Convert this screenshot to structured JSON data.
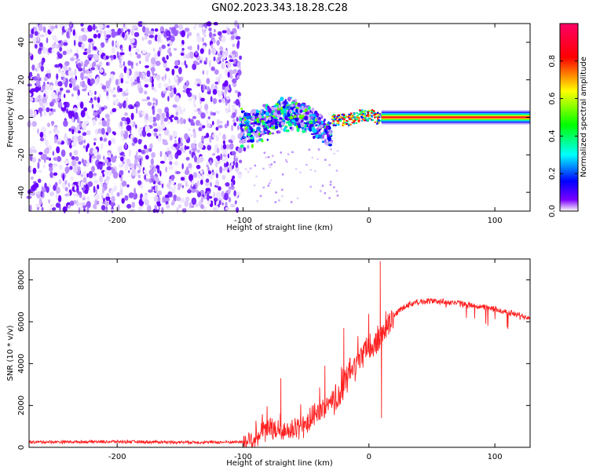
{
  "title": "GN02.2023.343.18.28.C28",
  "chart_data": [
    {
      "type": "heatmap",
      "title": "GN02.2023.343.18.28.C28",
      "xlabel": "Height of straight line (km)",
      "ylabel": "Frequency (Hz)",
      "xlim": [
        -270,
        128
      ],
      "ylim": [
        -50,
        50
      ],
      "xticks": [
        -200,
        -100,
        0,
        100
      ],
      "yticks": [
        -40,
        -20,
        0,
        20,
        40
      ],
      "colorbar": {
        "label": "Normalized spectral amplitude",
        "range": [
          0,
          1
        ],
        "ticks": [
          "0.0",
          "0.2",
          "0.4",
          "0.6",
          "0.8"
        ],
        "colors": [
          "#ffffff",
          "#7b00ff",
          "#0000ff",
          "#00ffff",
          "#00ff00",
          "#ffff00",
          "#ff0000",
          "#ff0066"
        ]
      },
      "regions": [
        {
          "x_range": [
            -270,
            -102
          ],
          "freq_spread_hz": 50,
          "amplitude": "low (noise, ~0.0-0.3)"
        },
        {
          "x_range": [
            -102,
            -30
          ],
          "freq_spread_hz": 12,
          "amplitude": "moderate (~0.2-0.6)"
        },
        {
          "x_range": [
            -30,
            10
          ],
          "freq_spread_hz": 3,
          "amplitude": "high (~0.7-1.0)"
        },
        {
          "x_range": [
            10,
            128
          ],
          "freq_center_hz": 0,
          "amplitude": "max (~1.0)"
        }
      ]
    },
    {
      "type": "line",
      "xlabel": "Height of straight line (km)",
      "ylabel": "SNR (10 * v/v)",
      "xlim": [
        -270,
        128
      ],
      "ylim": [
        0,
        9000
      ],
      "xticks": [
        -200,
        -100,
        0,
        100
      ],
      "yticks": [
        0,
        2000,
        4000,
        6000,
        8000
      ],
      "color": "#ff2020",
      "series": [
        {
          "x": [
            -270,
            -240,
            -200,
            -160,
            -120,
            -100,
            -95,
            -90,
            -85,
            -80,
            -75,
            -70,
            -65,
            -60,
            -55,
            -50,
            -45,
            -40,
            -35,
            -30,
            -25,
            -20,
            -15,
            -10,
            -5,
            0,
            5,
            8,
            10,
            12,
            15,
            20,
            25,
            30,
            40,
            50,
            60,
            70,
            80,
            90,
            100,
            110,
            120,
            128
          ],
          "y": [
            250,
            260,
            270,
            250,
            240,
            260,
            320,
            420,
            700,
            900,
            850,
            800,
            700,
            850,
            900,
            1100,
            1400,
            1700,
            1900,
            2000,
            2400,
            3000,
            3600,
            4000,
            4400,
            4800,
            4900,
            5200,
            5300,
            5600,
            6000,
            6300,
            6600,
            6800,
            6950,
            7000,
            6950,
            6900,
            6800,
            6700,
            6600,
            6450,
            6300,
            6200
          ],
          "spikes": [
            {
              "x": -70,
              "y": 3300
            },
            {
              "x": -35,
              "y": 3900
            },
            {
              "x": -20,
              "y": 5700
            },
            {
              "x": 9,
              "y": 8900
            },
            {
              "x": 10,
              "y": 1400
            }
          ]
        }
      ]
    }
  ]
}
